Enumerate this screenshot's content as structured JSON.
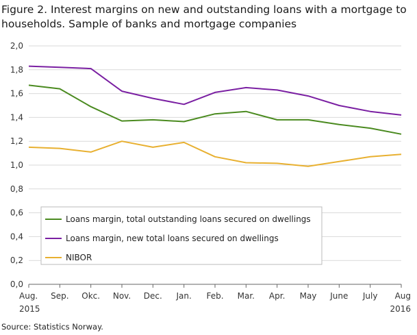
{
  "title_lines": [
    "Figure 2. Interest margins on new and outstanding loans with a mortgage to",
    "households. Sample of banks and mortgage companies"
  ],
  "source": "Source: Statistics Norway.",
  "colors": {
    "outstanding": "#4a8a1f",
    "new": "#7a1fa2",
    "nibor": "#e8b030",
    "grid": "#d9d9d9",
    "axis": "#666666"
  },
  "chart_data": {
    "type": "line",
    "title": "Figure 2. Interest margins on new and outstanding loans with a mortgage to households. Sample of banks and mortgage companies",
    "xlabel": "",
    "ylabel": "",
    "ylim": [
      0,
      2
    ],
    "yticks": [
      "0,0",
      "0,2",
      "0,4",
      "0,6",
      "0,8",
      "1,0",
      "1,2",
      "1,4",
      "1,6",
      "1,8",
      "2,0"
    ],
    "categories": [
      "Aug. 2015",
      "Sep.",
      "Okc.",
      "Nov.",
      "Dec.",
      "Jan.",
      "Feb.",
      "Mar.",
      "Apr.",
      "May",
      "June",
      "July",
      "Aug 2016"
    ],
    "x_tick_lines": [
      [
        "Aug.",
        "2015"
      ],
      [
        "Sep."
      ],
      [
        "Okc."
      ],
      [
        "Nov."
      ],
      [
        "Dec."
      ],
      [
        "Jan."
      ],
      [
        "Feb."
      ],
      [
        "Mar."
      ],
      [
        "Apr."
      ],
      [
        "May"
      ],
      [
        "June"
      ],
      [
        "July"
      ],
      [
        "Aug",
        "2016"
      ]
    ],
    "grid": "horizontal",
    "legend_position": "bottom-left",
    "series": [
      {
        "name": "Loans margin, total outstanding loans secured on dwellings",
        "color": "#4a8a1f",
        "values": [
          1.67,
          1.64,
          1.49,
          1.37,
          1.38,
          1.365,
          1.43,
          1.45,
          1.38,
          1.38,
          1.34,
          1.31,
          1.26
        ]
      },
      {
        "name": "Loans margin, new total loans secured on dwellings",
        "color": "#7a1fa2",
        "values": [
          1.83,
          1.82,
          1.81,
          1.62,
          1.56,
          1.51,
          1.61,
          1.65,
          1.63,
          1.58,
          1.5,
          1.45,
          1.42
        ]
      },
      {
        "name": "NIBOR",
        "color": "#e8b030",
        "values": [
          1.15,
          1.14,
          1.11,
          1.2,
          1.15,
          1.19,
          1.07,
          1.02,
          1.015,
          0.99,
          1.03,
          1.07,
          1.09
        ]
      }
    ]
  }
}
